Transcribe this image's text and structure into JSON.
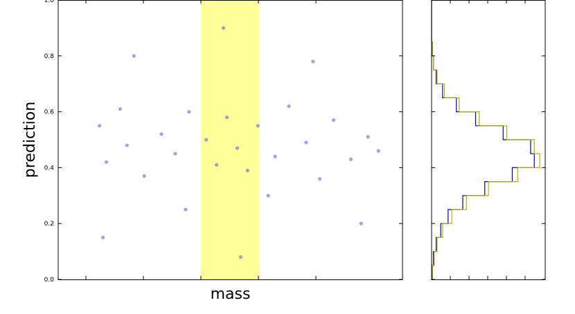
{
  "chart_data": [
    {
      "type": "scatter",
      "title": "",
      "xlabel": "mass",
      "ylabel": "prediction",
      "xlim": [
        0,
        1
      ],
      "ylim": [
        0,
        1
      ],
      "yticks": [
        "0.0",
        "0.2",
        "0.4",
        "0.6",
        "0.8",
        "1.0"
      ],
      "x_ticks_labeled": false,
      "grid": false,
      "legend": "none",
      "highlight_band": {
        "x_range": [
          0.415,
          0.585
        ],
        "color": "#ffff99"
      },
      "point_color": "#4444dd",
      "series": [
        {
          "x": [
            0.12,
            0.14,
            0.18,
            0.2,
            0.25,
            0.3,
            0.34,
            0.38,
            0.43,
            0.46,
            0.49,
            0.52,
            0.55,
            0.58,
            0.63,
            0.67,
            0.72,
            0.76,
            0.8,
            0.85,
            0.9,
            0.93,
            0.13,
            0.22,
            0.37,
            0.48,
            0.53,
            0.61,
            0.74,
            0.88
          ],
          "y": [
            0.55,
            0.42,
            0.61,
            0.48,
            0.37,
            0.52,
            0.45,
            0.6,
            0.5,
            0.41,
            0.58,
            0.47,
            0.39,
            0.55,
            0.44,
            0.62,
            0.49,
            0.36,
            0.57,
            0.43,
            0.51,
            0.46,
            0.15,
            0.8,
            0.25,
            0.9,
            0.08,
            0.3,
            0.78,
            0.2
          ]
        }
      ]
    },
    {
      "type": "histogram",
      "title": "",
      "orientation": "horizontal",
      "ylim": [
        0,
        1
      ],
      "bins": [
        0.0,
        0.05,
        0.1,
        0.15,
        0.2,
        0.25,
        0.3,
        0.35,
        0.4,
        0.45,
        0.5,
        0.55,
        0.6,
        0.65,
        0.7,
        0.75,
        0.8,
        0.85,
        0.9,
        0.95,
        1.0
      ],
      "series": [
        {
          "color": "#0000cc",
          "counts": [
            1,
            2,
            5,
            10,
            18,
            34,
            58,
            88,
            112,
            108,
            78,
            48,
            27,
            12,
            5,
            2,
            1,
            0,
            0,
            0
          ]
        },
        {
          "color": "#bbaa00",
          "counts": [
            1,
            3,
            6,
            12,
            22,
            38,
            62,
            94,
            118,
            112,
            82,
            52,
            30,
            14,
            6,
            2,
            1,
            0,
            0,
            0
          ]
        }
      ]
    }
  ]
}
